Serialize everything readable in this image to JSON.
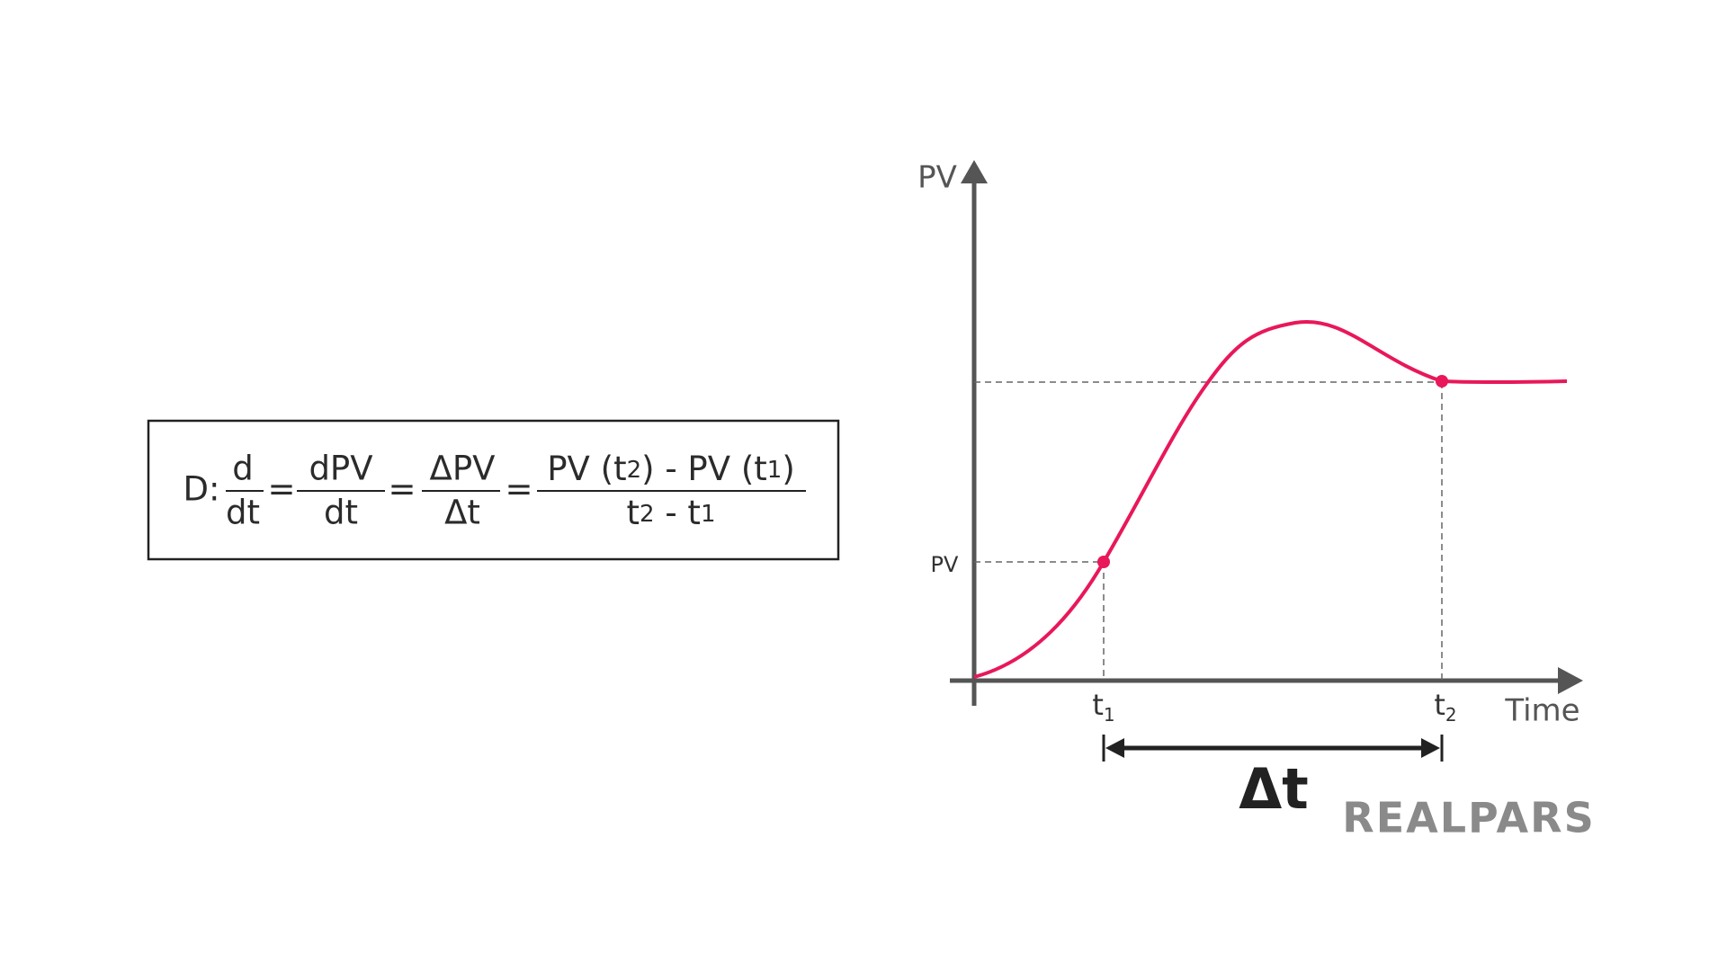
{
  "formula": {
    "prefix": "D:",
    "equals": "=",
    "terms": [
      {
        "numerator": "d",
        "denominator": "dt"
      },
      {
        "numerator": "dPV",
        "denominator": "dt"
      },
      {
        "numerator": "ΔPV",
        "denominator": "Δt"
      },
      {
        "numerator": [
          {
            "text": "PV (t"
          },
          {
            "text": "2",
            "sub": true
          },
          {
            "text": ") - PV (t"
          },
          {
            "text": "1",
            "sub": true
          },
          {
            "text": ")"
          }
        ],
        "denominator": [
          {
            "text": "t"
          },
          {
            "text": "2",
            "sub": true
          },
          {
            "text": " - t"
          },
          {
            "text": "1",
            "sub": true
          }
        ]
      }
    ]
  },
  "graph": {
    "y_axis_label": "PV",
    "x_axis_label": "Time",
    "y_marker_label": "PV",
    "x_markers": [
      {
        "base": "t",
        "sub": "1"
      },
      {
        "base": "t",
        "sub": "2"
      }
    ],
    "interval_label": "Δt"
  },
  "logo": "REALPARS"
}
